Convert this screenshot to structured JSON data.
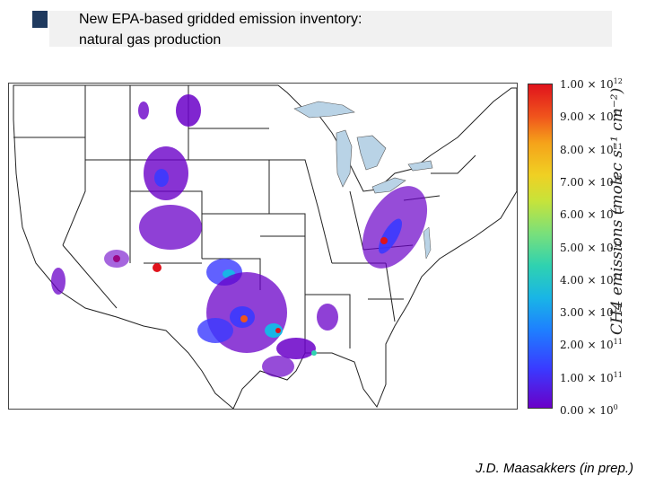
{
  "slide": {
    "title_line_1": "New EPA-based gridded emission inventory:",
    "title_line_2": "natural gas production",
    "credit": "J.D. Maasakkers (in prep.)",
    "bullet_color": "#1f3a5f"
  },
  "colorbar": {
    "label": "CH4 emissions (molec s⁻¹ cm⁻²)",
    "ticks": [
      {
        "mantissa": "1.00 × 10",
        "exp": "12"
      },
      {
        "mantissa": "9.00 × 10",
        "exp": "11"
      },
      {
        "mantissa": "8.00 × 10",
        "exp": "11"
      },
      {
        "mantissa": "7.00 × 10",
        "exp": "11"
      },
      {
        "mantissa": "6.00 × 10",
        "exp": "11"
      },
      {
        "mantissa": "5.00 × 10",
        "exp": "11"
      },
      {
        "mantissa": "4.00 × 10",
        "exp": "11"
      },
      {
        "mantissa": "3.00 × 10",
        "exp": "11"
      },
      {
        "mantissa": "2.00 × 10",
        "exp": "11"
      },
      {
        "mantissa": "1.00 × 10",
        "exp": "11"
      },
      {
        "mantissa": "0.00 × 10",
        "exp": "0"
      }
    ],
    "colors": [
      "#6a00c8",
      "#3a3aff",
      "#1e7fff",
      "#19b5e6",
      "#2fd2b0",
      "#7ae07a",
      "#c7e33a",
      "#f0d023",
      "#f5a21a",
      "#f0551c",
      "#e0131c"
    ]
  }
}
